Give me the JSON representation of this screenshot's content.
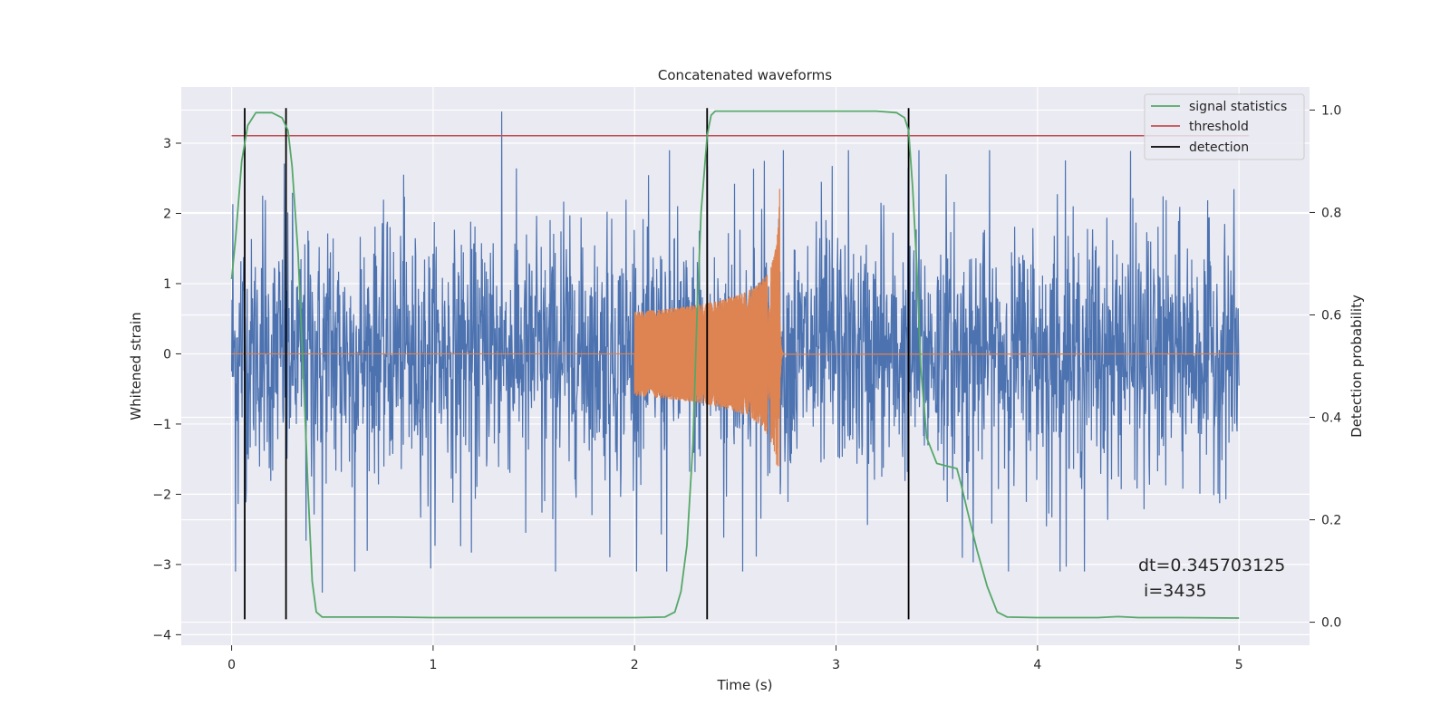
{
  "chart_data": {
    "type": "line",
    "title": "Concatenated waveforms",
    "xlabel": "Time (s)",
    "ylabel": "Whitened strain",
    "y2label": "Detection probability",
    "xlim": [
      -0.25,
      5.35
    ],
    "ylim": [
      -4.15,
      3.8
    ],
    "y2lim": [
      -0.045,
      1.045
    ],
    "xticks": [
      0,
      1,
      2,
      3,
      4,
      5
    ],
    "yticks": [
      -4,
      -3,
      -2,
      -1,
      0,
      1,
      2,
      3
    ],
    "y2ticks": [
      0.0,
      0.2,
      0.4,
      0.6,
      0.8,
      1.0
    ],
    "xtick_labels": [
      "0",
      "1",
      "2",
      "3",
      "4",
      "5"
    ],
    "ytick_labels": [
      "−4",
      "−3",
      "−2",
      "−1",
      "0",
      "1",
      "2",
      "3"
    ],
    "y2tick_labels": [
      "0.0",
      "0.2",
      "0.4",
      "0.6",
      "0.8",
      "1.0"
    ],
    "grid": true,
    "legend_position": "top-right",
    "background": "#eaeaf2",
    "series": [
      {
        "kind": "noise",
        "axis": "left",
        "color": "#4c72b0",
        "x_range": [
          0,
          5
        ],
        "amplitude_typical": 1.3,
        "peak_max": 3.45,
        "peak_min": -3.4
      },
      {
        "kind": "chirp",
        "axis": "left",
        "color": "#dd8452",
        "x_range": [
          0,
          5
        ],
        "chirp_start": 2.0,
        "chirp_merger": 2.72,
        "start_amplitude": 0.6,
        "peak_max": 2.35,
        "peak_min": -1.6
      },
      {
        "name": "signal statistics",
        "axis": "right",
        "color": "#55a868",
        "x": [
          0,
          0.02,
          0.05,
          0.08,
          0.12,
          0.2,
          0.25,
          0.28,
          0.3,
          0.33,
          0.36,
          0.38,
          0.4,
          0.42,
          0.45,
          0.6,
          0.8,
          1.0,
          1.5,
          2.0,
          2.15,
          2.2,
          2.23,
          2.26,
          2.29,
          2.31,
          2.33,
          2.36,
          2.38,
          2.4,
          2.45,
          2.8,
          3.0,
          3.2,
          3.3,
          3.34,
          3.36,
          3.38,
          3.4,
          3.42,
          3.45,
          3.5,
          3.55,
          3.6,
          3.62,
          3.65,
          3.7,
          3.75,
          3.8,
          3.85,
          4.0,
          4.3,
          4.4,
          4.5,
          4.7,
          5.0
        ],
        "values": [
          0.67,
          0.75,
          0.9,
          0.97,
          0.995,
          0.995,
          0.985,
          0.96,
          0.89,
          0.72,
          0.45,
          0.25,
          0.08,
          0.02,
          0.01,
          0.01,
          0.01,
          0.009,
          0.009,
          0.009,
          0.01,
          0.02,
          0.06,
          0.15,
          0.35,
          0.6,
          0.8,
          0.95,
          0.99,
          0.998,
          0.998,
          0.998,
          0.998,
          0.998,
          0.995,
          0.985,
          0.96,
          0.85,
          0.7,
          0.5,
          0.36,
          0.31,
          0.305,
          0.3,
          0.27,
          0.22,
          0.14,
          0.07,
          0.02,
          0.01,
          0.009,
          0.009,
          0.011,
          0.009,
          0.009,
          0.008
        ]
      },
      {
        "name": "threshold",
        "axis": "right",
        "color": "#c44e52",
        "x": [
          0,
          5.05
        ],
        "values": [
          0.95,
          0.95
        ]
      },
      {
        "name": "detection",
        "axis": "left",
        "color": "#000000",
        "vlines": [
          0.065,
          0.27,
          2.36,
          3.36
        ],
        "y_range": [
          -3.78,
          3.5
        ]
      }
    ],
    "legend_entries": [
      {
        "label": "signal statistics",
        "color": "#55a868"
      },
      {
        "label": "threshold",
        "color": "#c44e52"
      },
      {
        "label": "detection",
        "color": "#000000"
      }
    ],
    "annotation": {
      "line1": "dt=0.345703125",
      "line2": " i=3435"
    }
  }
}
